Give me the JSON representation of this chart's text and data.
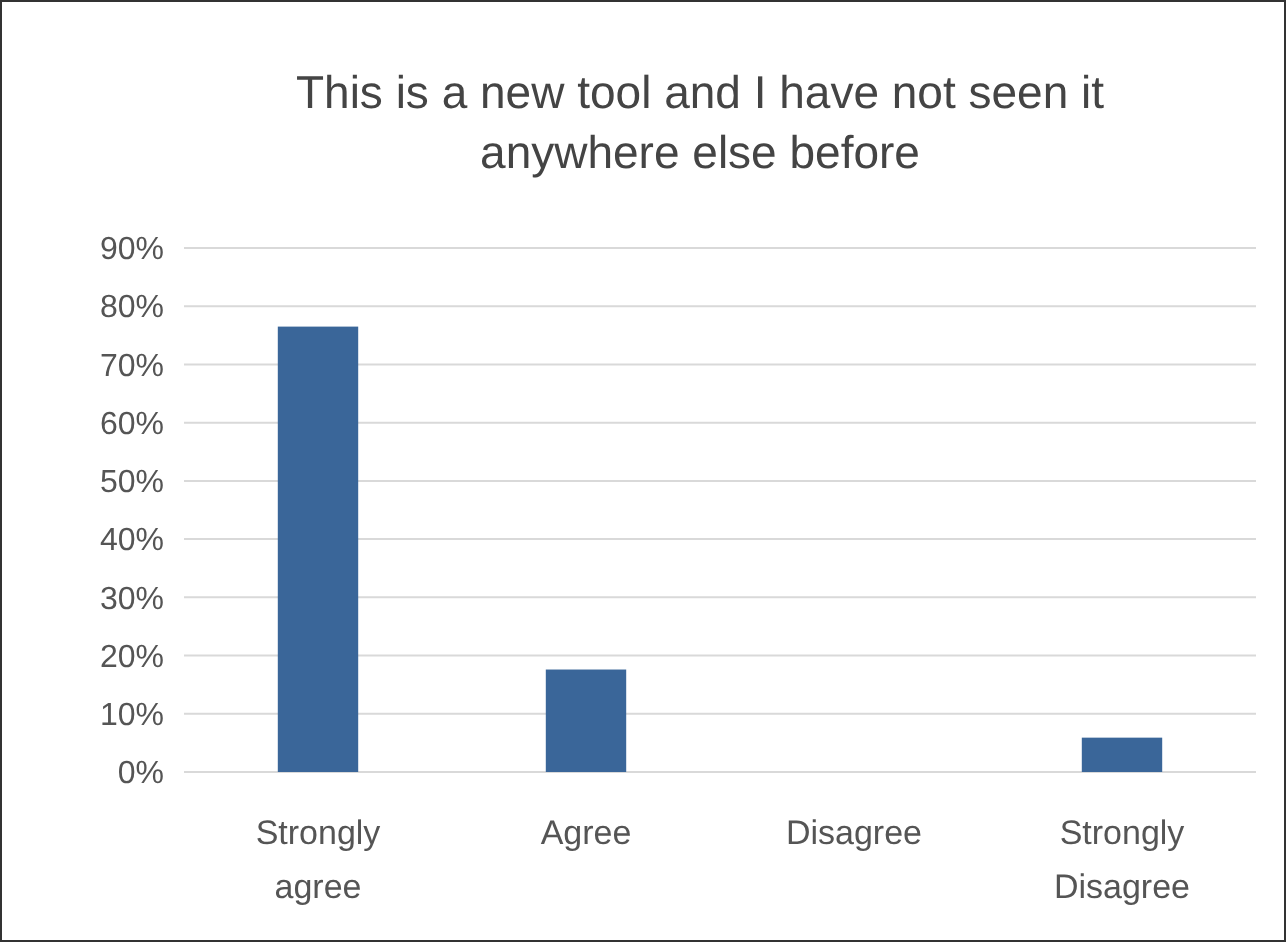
{
  "chart_data": {
    "type": "bar",
    "title": "This is a new tool and I have not seen it anywhere else before",
    "categories": [
      "Strongly agree",
      "Agree",
      "Disagree",
      "Strongly Disagree"
    ],
    "values": [
      76.5,
      17.6,
      0,
      5.9
    ],
    "color": "#3a6699",
    "ylim": [
      0,
      90
    ],
    "yticks": [
      {
        "value": 0,
        "label": "0%"
      },
      {
        "value": 10,
        "label": "10%"
      },
      {
        "value": 20,
        "label": "20%"
      },
      {
        "value": 30,
        "label": "30%"
      },
      {
        "value": 40,
        "label": "40%"
      },
      {
        "value": 50,
        "label": "50%"
      },
      {
        "value": 60,
        "label": "60%"
      },
      {
        "value": 70,
        "label": "70%"
      },
      {
        "value": 80,
        "label": "80%"
      },
      {
        "value": 90,
        "label": "90%"
      }
    ],
    "grid": "y"
  }
}
